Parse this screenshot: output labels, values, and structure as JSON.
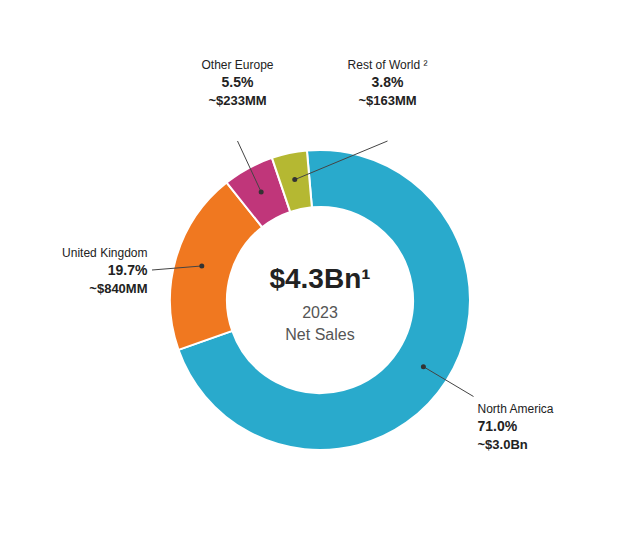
{
  "chart_data": {
    "type": "pie",
    "title": "$4.3Bn¹",
    "subtitle": "2023",
    "annotations": [
      "Net Sales"
    ],
    "categories": [
      "North America",
      "United Kingdom",
      "Other Europe",
      "Rest of World ²"
    ],
    "values": [
      71.0,
      19.7,
      5.5,
      3.8
    ],
    "value_labels": [
      "71.0%",
      "19.7%",
      "5.5%",
      "3.8%"
    ],
    "amounts": [
      "~$3.0Bn",
      "~$840MM",
      "~$233MM",
      "~$163MM"
    ],
    "colors": [
      "#29AACC",
      "#F07820",
      "#C0367A",
      "#B5B832"
    ]
  }
}
